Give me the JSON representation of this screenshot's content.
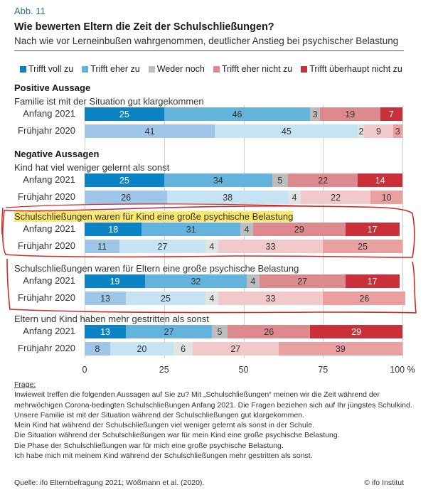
{
  "figure_label": "Abb. 11",
  "title": "Wie bewerten Eltern die Zeit der Schulschließungen?",
  "subtitle": "Nach wie vor Lerneinbußen wahrgenommen, deutlicher Anstieg bei psychischer Belastung",
  "chart_data": {
    "type": "bar",
    "orientation": "horizontal-stacked-100",
    "legend_position": "top",
    "legend": [
      "Trifft voll zu",
      "Trifft eher zu",
      "Weder noch",
      "Trifft eher nicht zu",
      "Trifft überhaupt nicht zu"
    ],
    "colors": {
      "Anfang 2021": [
        "#0b82c4",
        "#64b3dc",
        "#bdbdbd",
        "#dc8a8d",
        "#c9303a"
      ],
      "Frühjahr 2020": [
        "#9fc6e8",
        "#c5e3f3",
        "#e3e3e3",
        "#f2c9ca",
        "#ea9fa1"
      ]
    },
    "xlim": [
      0,
      100
    ],
    "xticks": [
      "0",
      "25",
      "50",
      "75",
      "100 %"
    ],
    "xtick_values": [
      0,
      25,
      50,
      75,
      100
    ],
    "groups": [
      {
        "heading": "Positive Aussage",
        "statements": [
          {
            "label": "Familie ist mit der Situation gut klargekommen",
            "highlight": false,
            "rows": [
              {
                "label": "Anfang 2021",
                "values": [
                  25,
                  46,
                  3,
                  19,
                  7
                ]
              },
              {
                "label": "Frühjahr 2020",
                "values": [
                  41,
                  45,
                  2,
                  9,
                  3
                ]
              }
            ]
          }
        ]
      },
      {
        "heading": "Negative Aussagen",
        "statements": [
          {
            "label": "Kind hat viel weniger gelernt als sonst",
            "highlight": false,
            "rows": [
              {
                "label": "Anfang 2021",
                "values": [
                  25,
                  34,
                  5,
                  22,
                  14
                ]
              },
              {
                "label": "Frühjahr 2020",
                "values": [
                  26,
                  38,
                  4,
                  22,
                  10
                ]
              }
            ]
          },
          {
            "label": "Schulschließungen waren für Kind eine große psychische Belastung",
            "highlight": true,
            "rows": [
              {
                "label": "Anfang 2021",
                "values": [
                  18,
                  31,
                  4,
                  29,
                  17
                ]
              },
              {
                "label": "Frühjahr 2020",
                "values": [
                  11,
                  27,
                  4,
                  33,
                  25
                ]
              }
            ]
          },
          {
            "label": "Schulschließungen waren für Eltern eine große psychische Belastung",
            "highlight": false,
            "rows": [
              {
                "label": "Anfang 2021",
                "values": [
                  19,
                  32,
                  4,
                  27,
                  17
                ]
              },
              {
                "label": "Frühjahr 2020",
                "values": [
                  13,
                  25,
                  4,
                  33,
                  26
                ]
              }
            ]
          },
          {
            "label": "Eltern und Kind haben mehr gestritten als sonst",
            "highlight": false,
            "rows": [
              {
                "label": "Anfang 2021",
                "values": [
                  13,
                  27,
                  5,
                  26,
                  29
                ]
              },
              {
                "label": "Frühjahr 2020",
                "values": [
                  8,
                  20,
                  6,
                  27,
                  39
                ]
              }
            ]
          }
        ]
      }
    ]
  },
  "notes": {
    "frage_label": "Frage:",
    "lines": [
      "Inwieweit treffen die folgenden Aussagen auf Sie zu? Mit „Schulschließungen“ meinen wir die Zeit während der mehrwöchigen Corona-bedingten Schulschließungen Anfang 2021. Die Fragen beziehen sich auf Ihr jüngstes Schulkind.",
      "Unsere Familie ist mit der Situation während der Schulschließungen gut klargekommen.",
      "Mein Kind hat während der Schulschließungen viel weniger gelernt als sonst in der Schule.",
      "Die Situation während der Schulschließungen war für mein Kind eine große psychische Belastung.",
      "Die Phase der Schulschließungen war für mich eine große psychische Belastung.",
      "Ich habe mich mit meinem Kind während der Schulschließungen mehr gestritten als sonst."
    ]
  },
  "source": "Quelle: ifo Elternbefragung 2021; Wößmann et al. (2020).",
  "copyright": "© ifo Institut",
  "annotation_color": "#d02a2a"
}
